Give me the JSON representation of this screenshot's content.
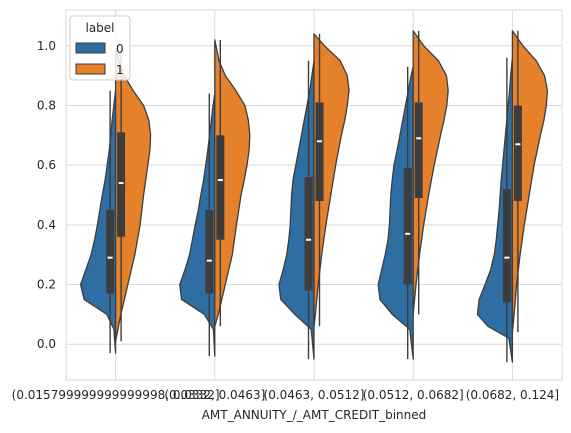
{
  "chart_data": {
    "type": "violin-split",
    "xlabel": "AMT_ANNUITY_/_AMT_CREDIT_binned",
    "ylabel": "",
    "ylim": [
      -0.12,
      1.12
    ],
    "yticks": [
      0.0,
      0.2,
      0.4,
      0.6,
      0.8,
      1.0
    ],
    "ytick_labels": [
      "0.0",
      "0.2",
      "0.4",
      "0.6",
      "0.8",
      "1.0"
    ],
    "grid": true,
    "legend": {
      "title": "label",
      "placement": "top-left",
      "entries": [
        {
          "label": "0",
          "color": "#2f6ea3"
        },
        {
          "label": "1",
          "color": "#e5812a"
        }
      ]
    },
    "categories": [
      "(0.015799999999999998, 0.0332]",
      "(0.0332, 0.0463]",
      "(0.0463, 0.0512]",
      "(0.0512, 0.0682]",
      "(0.0682, 0.124]"
    ],
    "series": [
      {
        "name": "0",
        "color": "#2f6ea3",
        "side": "left",
        "groups": [
          {
            "min": -0.03,
            "q1": 0.17,
            "median": 0.29,
            "q3": 0.45,
            "max": 0.85,
            "density": [
              [
                -0.03,
                0.0
              ],
              [
                0.05,
                0.05
              ],
              [
                0.1,
                0.25
              ],
              [
                0.15,
                0.9
              ],
              [
                0.2,
                1.0
              ],
              [
                0.25,
                0.85
              ],
              [
                0.3,
                0.7
              ],
              [
                0.35,
                0.6
              ],
              [
                0.4,
                0.52
              ],
              [
                0.45,
                0.45
              ],
              [
                0.5,
                0.38
              ],
              [
                0.55,
                0.3
              ],
              [
                0.6,
                0.24
              ],
              [
                0.65,
                0.18
              ],
              [
                0.7,
                0.14
              ],
              [
                0.75,
                0.1
              ],
              [
                0.8,
                0.05
              ],
              [
                0.85,
                0.0
              ]
            ]
          },
          {
            "min": -0.04,
            "q1": 0.17,
            "median": 0.28,
            "q3": 0.45,
            "max": 0.84,
            "density": [
              [
                -0.04,
                0.0
              ],
              [
                0.05,
                0.04
              ],
              [
                0.1,
                0.3
              ],
              [
                0.15,
                0.95
              ],
              [
                0.2,
                1.0
              ],
              [
                0.25,
                0.85
              ],
              [
                0.3,
                0.72
              ],
              [
                0.35,
                0.64
              ],
              [
                0.4,
                0.56
              ],
              [
                0.45,
                0.47
              ],
              [
                0.5,
                0.4
              ],
              [
                0.55,
                0.32
              ],
              [
                0.6,
                0.26
              ],
              [
                0.65,
                0.2
              ],
              [
                0.7,
                0.15
              ],
              [
                0.75,
                0.1
              ],
              [
                0.8,
                0.05
              ],
              [
                0.84,
                0.0
              ]
            ]
          },
          {
            "min": -0.05,
            "q1": 0.18,
            "median": 0.35,
            "q3": 0.56,
            "max": 0.95,
            "density": [
              [
                -0.05,
                0.0
              ],
              [
                0.05,
                0.08
              ],
              [
                0.1,
                0.55
              ],
              [
                0.15,
                0.95
              ],
              [
                0.2,
                1.0
              ],
              [
                0.25,
                0.88
              ],
              [
                0.3,
                0.78
              ],
              [
                0.35,
                0.72
              ],
              [
                0.4,
                0.68
              ],
              [
                0.45,
                0.66
              ],
              [
                0.5,
                0.64
              ],
              [
                0.55,
                0.6
              ],
              [
                0.6,
                0.52
              ],
              [
                0.65,
                0.44
              ],
              [
                0.7,
                0.36
              ],
              [
                0.75,
                0.28
              ],
              [
                0.8,
                0.2
              ],
              [
                0.85,
                0.12
              ],
              [
                0.9,
                0.06
              ],
              [
                0.95,
                0.0
              ]
            ]
          },
          {
            "min": -0.05,
            "q1": 0.2,
            "median": 0.37,
            "q3": 0.59,
            "max": 0.93,
            "density": [
              [
                -0.05,
                0.0
              ],
              [
                0.05,
                0.1
              ],
              [
                0.1,
                0.6
              ],
              [
                0.15,
                0.95
              ],
              [
                0.2,
                1.0
              ],
              [
                0.25,
                0.9
              ],
              [
                0.3,
                0.8
              ],
              [
                0.35,
                0.72
              ],
              [
                0.4,
                0.68
              ],
              [
                0.45,
                0.66
              ],
              [
                0.5,
                0.64
              ],
              [
                0.55,
                0.6
              ],
              [
                0.6,
                0.55
              ],
              [
                0.65,
                0.46
              ],
              [
                0.7,
                0.38
              ],
              [
                0.75,
                0.3
              ],
              [
                0.8,
                0.22
              ],
              [
                0.85,
                0.14
              ],
              [
                0.9,
                0.06
              ],
              [
                0.93,
                0.0
              ]
            ]
          },
          {
            "min": -0.06,
            "q1": 0.14,
            "median": 0.29,
            "q3": 0.52,
            "max": 0.96,
            "density": [
              [
                -0.06,
                0.0
              ],
              [
                0.02,
                0.1
              ],
              [
                0.06,
                0.7
              ],
              [
                0.1,
                1.0
              ],
              [
                0.15,
                0.95
              ],
              [
                0.2,
                0.78
              ],
              [
                0.25,
                0.62
              ],
              [
                0.3,
                0.52
              ],
              [
                0.35,
                0.46
              ],
              [
                0.4,
                0.42
              ],
              [
                0.45,
                0.38
              ],
              [
                0.5,
                0.35
              ],
              [
                0.55,
                0.32
              ],
              [
                0.6,
                0.28
              ],
              [
                0.65,
                0.24
              ],
              [
                0.7,
                0.2
              ],
              [
                0.75,
                0.16
              ],
              [
                0.8,
                0.12
              ],
              [
                0.85,
                0.08
              ],
              [
                0.9,
                0.05
              ],
              [
                0.96,
                0.0
              ]
            ]
          }
        ]
      },
      {
        "name": "1",
        "color": "#e5812a",
        "side": "right",
        "groups": [
          {
            "min": 0.01,
            "q1": 0.36,
            "median": 0.54,
            "q3": 0.71,
            "max": 0.99,
            "density": [
              [
                0.01,
                0.0
              ],
              [
                0.1,
                0.15
              ],
              [
                0.2,
                0.35
              ],
              [
                0.3,
                0.55
              ],
              [
                0.4,
                0.7
              ],
              [
                0.5,
                0.8
              ],
              [
                0.55,
                0.86
              ],
              [
                0.6,
                0.92
              ],
              [
                0.65,
                0.98
              ],
              [
                0.7,
                1.0
              ],
              [
                0.75,
                0.95
              ],
              [
                0.8,
                0.8
              ],
              [
                0.85,
                0.5
              ],
              [
                0.9,
                0.25
              ],
              [
                0.95,
                0.1
              ],
              [
                0.99,
                0.0
              ]
            ]
          },
          {
            "min": 0.06,
            "q1": 0.35,
            "median": 0.55,
            "q3": 0.7,
            "max": 1.02,
            "density": [
              [
                0.06,
                0.0
              ],
              [
                0.1,
                0.1
              ],
              [
                0.2,
                0.3
              ],
              [
                0.3,
                0.5
              ],
              [
                0.4,
                0.62
              ],
              [
                0.5,
                0.75
              ],
              [
                0.55,
                0.84
              ],
              [
                0.6,
                0.92
              ],
              [
                0.65,
                0.98
              ],
              [
                0.7,
                1.0
              ],
              [
                0.75,
                0.96
              ],
              [
                0.8,
                0.86
              ],
              [
                0.85,
                0.6
              ],
              [
                0.9,
                0.3
              ],
              [
                0.95,
                0.12
              ],
              [
                1.02,
                0.0
              ]
            ]
          },
          {
            "min": 0.06,
            "q1": 0.48,
            "median": 0.68,
            "q3": 0.81,
            "max": 1.04,
            "density": [
              [
                0.06,
                0.0
              ],
              [
                0.1,
                0.04
              ],
              [
                0.2,
                0.12
              ],
              [
                0.3,
                0.22
              ],
              [
                0.4,
                0.34
              ],
              [
                0.5,
                0.48
              ],
              [
                0.6,
                0.62
              ],
              [
                0.7,
                0.78
              ],
              [
                0.75,
                0.88
              ],
              [
                0.8,
                0.95
              ],
              [
                0.85,
                1.0
              ],
              [
                0.9,
                0.95
              ],
              [
                0.95,
                0.75
              ],
              [
                1.0,
                0.3
              ],
              [
                1.04,
                0.0
              ]
            ]
          },
          {
            "min": 0.1,
            "q1": 0.49,
            "median": 0.69,
            "q3": 0.81,
            "max": 1.05,
            "density": [
              [
                0.1,
                0.0
              ],
              [
                0.15,
                0.04
              ],
              [
                0.2,
                0.08
              ],
              [
                0.3,
                0.18
              ],
              [
                0.4,
                0.3
              ],
              [
                0.5,
                0.44
              ],
              [
                0.6,
                0.6
              ],
              [
                0.7,
                0.78
              ],
              [
                0.75,
                0.88
              ],
              [
                0.8,
                0.96
              ],
              [
                0.85,
                1.0
              ],
              [
                0.9,
                0.95
              ],
              [
                0.95,
                0.72
              ],
              [
                1.0,
                0.3
              ],
              [
                1.05,
                0.0
              ]
            ]
          },
          {
            "min": 0.04,
            "q1": 0.48,
            "median": 0.67,
            "q3": 0.8,
            "max": 1.05,
            "density": [
              [
                0.04,
                0.0
              ],
              [
                0.1,
                0.05
              ],
              [
                0.2,
                0.12
              ],
              [
                0.3,
                0.22
              ],
              [
                0.4,
                0.34
              ],
              [
                0.5,
                0.48
              ],
              [
                0.6,
                0.62
              ],
              [
                0.7,
                0.8
              ],
              [
                0.75,
                0.9
              ],
              [
                0.8,
                0.97
              ],
              [
                0.85,
                1.0
              ],
              [
                0.9,
                0.92
              ],
              [
                0.95,
                0.68
              ],
              [
                1.0,
                0.3
              ],
              [
                1.05,
                0.0
              ]
            ]
          }
        ]
      }
    ]
  }
}
